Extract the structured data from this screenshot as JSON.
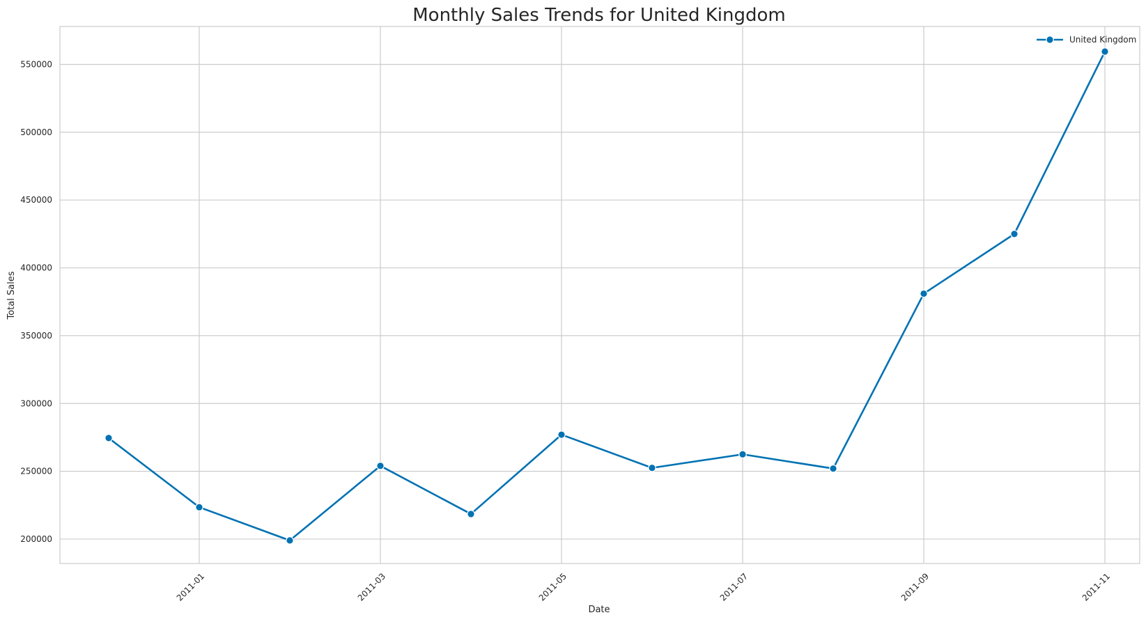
{
  "chart_data": {
    "type": "line",
    "title": "Monthly Sales Trends for United Kingdom",
    "xlabel": "Date",
    "ylabel": "Total Sales",
    "x_tick_labels": [
      "2011-01",
      "2011-03",
      "2011-05",
      "2011-07",
      "2011-09",
      "2011-11"
    ],
    "y_tick_labels": [
      "200000",
      "250000",
      "300000",
      "350000",
      "400000",
      "450000",
      "500000",
      "550000"
    ],
    "y_ticks": [
      200000,
      250000,
      300000,
      350000,
      400000,
      450000,
      500000,
      550000
    ],
    "ylim": [
      182000,
      578000
    ],
    "grid": true,
    "legend_position": "top-right",
    "series": [
      {
        "name": "United Kingdom",
        "color": "#0072B2",
        "marker": "circle",
        "points": [
          {
            "x": "2010-12",
            "y": 274500
          },
          {
            "x": "2011-01",
            "y": 223500
          },
          {
            "x": "2011-02",
            "y": 199000
          },
          {
            "x": "2011-03",
            "y": 254000
          },
          {
            "x": "2011-04",
            "y": 218500
          },
          {
            "x": "2011-05",
            "y": 277000
          },
          {
            "x": "2011-06",
            "y": 252500
          },
          {
            "x": "2011-07",
            "y": 262500
          },
          {
            "x": "2011-08",
            "y": 252000
          },
          {
            "x": "2011-09",
            "y": 381000
          },
          {
            "x": "2011-10",
            "y": 425000
          },
          {
            "x": "2011-11",
            "y": 559500
          }
        ]
      }
    ]
  }
}
